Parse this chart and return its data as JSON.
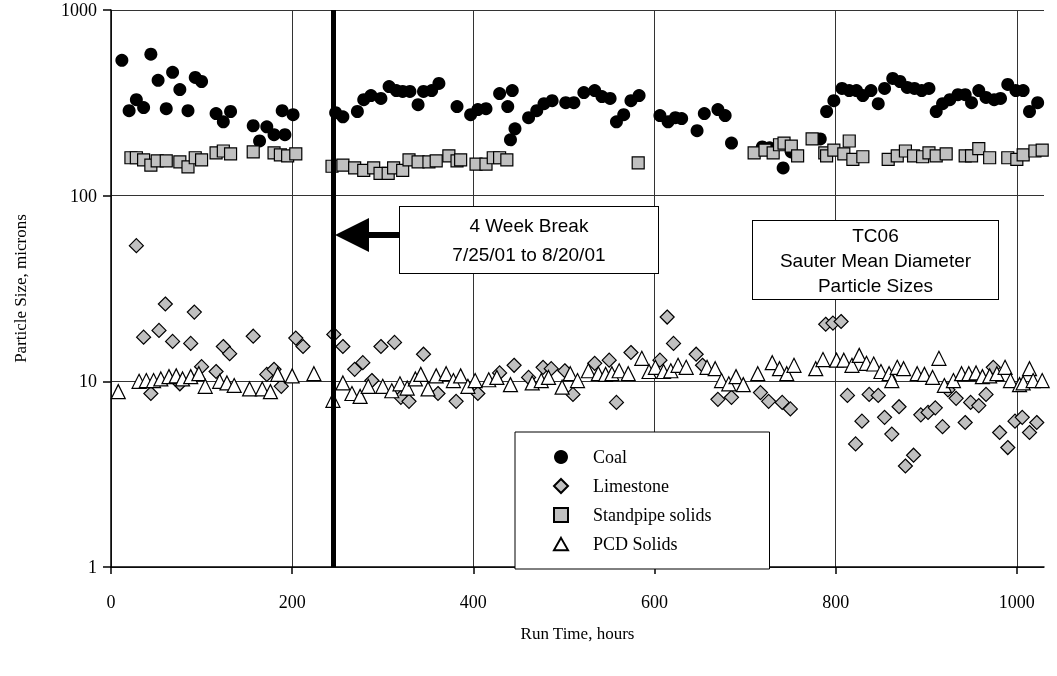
{
  "chart_data": {
    "type": "scatter",
    "xlabel": "Run Time, hours",
    "ylabel": "Particle Size, microns",
    "xlim": [
      0,
      1030
    ],
    "xticks": [
      0,
      200,
      400,
      600,
      800,
      1000
    ],
    "ylim": [
      1,
      1000
    ],
    "yticks": [
      1,
      10,
      100,
      1000
    ],
    "log": "y",
    "grid": true,
    "legend": "bottom",
    "ref_lines": [
      {
        "axis": "x",
        "value": 245,
        "color": "#000000"
      }
    ],
    "annotations": [
      "4 Week Break\n7/25/01 to 8/20/01",
      "TC06\nSauter Mean Diameter\nParticle Sizes"
    ],
    "series": [
      {
        "name": "Coal",
        "color": "#000000",
        "marker": "circle",
        "x": [
          12,
          20,
          28,
          36,
          44,
          52,
          61,
          68,
          76,
          85,
          93,
          100,
          116,
          124,
          132,
          157,
          164,
          172,
          180,
          189,
          192,
          201,
          248,
          256,
          272,
          279,
          287,
          298,
          307,
          315,
          322,
          330,
          339,
          345,
          354,
          362,
          382,
          397,
          405,
          414,
          429,
          438,
          441,
          443,
          446,
          461,
          470,
          478,
          487,
          502,
          511,
          522,
          534,
          542,
          551,
          558,
          566,
          574,
          583,
          606,
          615,
          623,
          630,
          647,
          655,
          670,
          678,
          685,
          719,
          727,
          742,
          751,
          783,
          790,
          798,
          807,
          815,
          823,
          830,
          839,
          847,
          854,
          863,
          871,
          879,
          887,
          895,
          903,
          911,
          918,
          926,
          935,
          943,
          950,
          958,
          966,
          975,
          982,
          990,
          999,
          1007,
          1014,
          1023
        ],
        "values": [
          536,
          287,
          329,
          298,
          578,
          418,
          294,
          462,
          373,
          287,
          433,
          412,
          277,
          250,
          284,
          238,
          197,
          235,
          213,
          287,
          213,
          273,
          280,
          266,
          284,
          329,
          346,
          334,
          387,
          368,
          364,
          364,
          309,
          364,
          368,
          402,
          302,
          273,
          291,
          294,
          355,
          302,
          200,
          368,
          229,
          263,
          287,
          313,
          325,
          317,
          317,
          359,
          368,
          342,
          334,
          250,
          273,
          325,
          346,
          270,
          250,
          263,
          260,
          224,
          277,
          291,
          270,
          192,
          183,
          181,
          141,
          172,
          202,
          284,
          325,
          378,
          368,
          368,
          346,
          368,
          313,
          378,
          428,
          412,
          383,
          378,
          368,
          378,
          284,
          313,
          329,
          350,
          350,
          317,
          368,
          338,
          329,
          334,
          397,
          368,
          368,
          284,
          317
        ]
      },
      {
        "name": "Limestone",
        "color": "#c0c0c0",
        "marker": "diamond",
        "x": [
          28,
          36,
          44,
          53,
          60,
          68,
          76,
          88,
          92,
          100,
          116,
          124,
          131,
          157,
          172,
          180,
          188,
          204,
          212,
          246,
          256,
          269,
          278,
          288,
          298,
          313,
          320,
          329,
          345,
          361,
          381,
          405,
          429,
          445,
          461,
          477,
          486,
          501,
          510,
          534,
          550,
          558,
          574,
          606,
          614,
          621,
          646,
          653,
          670,
          685,
          717,
          726,
          741,
          750,
          789,
          797,
          806,
          813,
          822,
          829,
          837,
          847,
          854,
          862,
          870,
          877,
          886,
          894,
          902,
          910,
          918,
          924,
          933,
          943,
          949,
          958,
          966,
          974,
          981,
          990,
          998,
          1006,
          1014,
          1022
        ],
        "values": [
          53.8,
          17.3,
          8.6,
          18.8,
          26.1,
          16.4,
          9.7,
          16.0,
          23.6,
          12.0,
          11.3,
          15.4,
          14.1,
          17.5,
          10.9,
          11.6,
          9.4,
          17.1,
          15.4,
          17.9,
          15.4,
          11.6,
          12.6,
          10.1,
          15.4,
          16.2,
          8.2,
          7.8,
          14.0,
          8.6,
          7.8,
          8.6,
          11.1,
          12.2,
          10.5,
          11.9,
          11.7,
          11.4,
          8.5,
          12.5,
          13.0,
          7.7,
          14.3,
          13.0,
          22.2,
          16.0,
          14.0,
          12.2,
          8.0,
          8.2,
          8.7,
          7.8,
          7.7,
          7.1,
          20.3,
          20.6,
          21.0,
          8.4,
          4.6,
          6.1,
          8.5,
          8.4,
          6.4,
          5.2,
          7.3,
          3.5,
          4.0,
          6.6,
          6.8,
          7.2,
          5.7,
          9.0,
          8.1,
          6.0,
          7.7,
          7.4,
          8.5,
          11.9,
          5.3,
          4.4,
          6.1,
          6.4,
          5.3,
          6.0
        ]
      },
      {
        "name": "Standpipe solids",
        "color": "#c0c0c0",
        "marker": "square",
        "x": [
          22,
          28,
          36,
          44,
          51,
          61,
          76,
          85,
          93,
          100,
          116,
          124,
          132,
          157,
          180,
          187,
          195,
          204,
          244,
          256,
          269,
          279,
          290,
          297,
          306,
          312,
          322,
          329,
          339,
          351,
          359,
          373,
          382,
          386,
          403,
          414,
          422,
          429,
          437,
          582,
          710,
          722,
          731,
          738,
          743,
          751,
          758,
          774,
          788,
          790,
          798,
          809,
          815,
          819,
          830,
          858,
          868,
          877,
          886,
          896,
          903,
          911,
          922,
          943,
          950,
          958,
          970,
          990,
          1000,
          1007,
          1020,
          1028
        ],
        "values": [
          160,
          160,
          156,
          146,
          154,
          154,
          152,
          143,
          160,
          156,
          170,
          174,
          168,
          172,
          170,
          166,
          164,
          168,
          144,
          146,
          141,
          137,
          141,
          132,
          132,
          141,
          137,
          156,
          152,
          152,
          154,
          164,
          154,
          156,
          148,
          148,
          160,
          160,
          156,
          150,
          170,
          176,
          170,
          188,
          192,
          185,
          164,
          202,
          170,
          164,
          176,
          168,
          197,
          157,
          162,
          157,
          164,
          174,
          164,
          162,
          170,
          164,
          168,
          164,
          164,
          179,
          160,
          160,
          157,
          166,
          174,
          176
        ]
      },
      {
        "name": "PCD Solids",
        "color": "#ffffff",
        "marker": "triangle",
        "x": [
          8,
          31,
          39,
          47,
          55,
          64,
          72,
          79,
          88,
          97,
          104,
          120,
          128,
          136,
          153,
          167,
          176,
          184,
          200,
          224,
          245,
          256,
          266,
          275,
          284,
          300,
          310,
          319,
          327,
          336,
          342,
          350,
          359,
          370,
          378,
          386,
          394,
          402,
          417,
          426,
          441,
          465,
          475,
          483,
          498,
          507,
          515,
          527,
          538,
          546,
          553,
          561,
          571,
          586,
          594,
          601,
          610,
          618,
          626,
          635,
          658,
          667,
          674,
          682,
          690,
          698,
          714,
          730,
          738,
          746,
          754,
          778,
          786,
          801,
          809,
          818,
          826,
          834,
          842,
          850,
          859,
          862,
          868,
          875,
          890,
          898,
          907,
          914,
          920,
          930,
          939,
          947,
          955,
          962,
          970,
          978,
          987,
          993,
          1003,
          1007,
          1014,
          1018,
          1028
        ],
        "values": [
          8.8,
          10.0,
          10.1,
          10.1,
          10.3,
          10.6,
          10.7,
          10.3,
          10.6,
          11.0,
          9.4,
          10.0,
          9.8,
          9.5,
          9.1,
          9.1,
          8.8,
          10.9,
          10.7,
          11.0,
          7.9,
          9.8,
          8.6,
          8.3,
          9.4,
          9.4,
          8.9,
          9.7,
          9.2,
          10.3,
          10.9,
          9.1,
          10.7,
          11.0,
          10.1,
          10.7,
          9.4,
          10.1,
          10.2,
          10.5,
          9.6,
          9.8,
          10.1,
          10.5,
          9.3,
          11.0,
          10.1,
          11.4,
          11.0,
          10.9,
          11.0,
          11.4,
          11.0,
          13.3,
          11.3,
          11.9,
          11.3,
          11.4,
          12.2,
          11.9,
          11.9,
          11.7,
          10.1,
          9.7,
          10.6,
          9.6,
          11.0,
          12.6,
          11.7,
          11.0,
          12.2,
          11.7,
          13.1,
          13.0,
          13.0,
          12.2,
          13.8,
          12.5,
          12.4,
          11.3,
          11.0,
          10.1,
          11.9,
          11.7,
          11.0,
          10.9,
          10.5,
          13.3,
          9.5,
          10.1,
          11.0,
          11.0,
          11.1,
          10.6,
          10.7,
          11.0,
          11.9,
          10.1,
          9.6,
          9.8,
          11.7,
          10.1,
          10.1
        ]
      }
    ]
  }
}
